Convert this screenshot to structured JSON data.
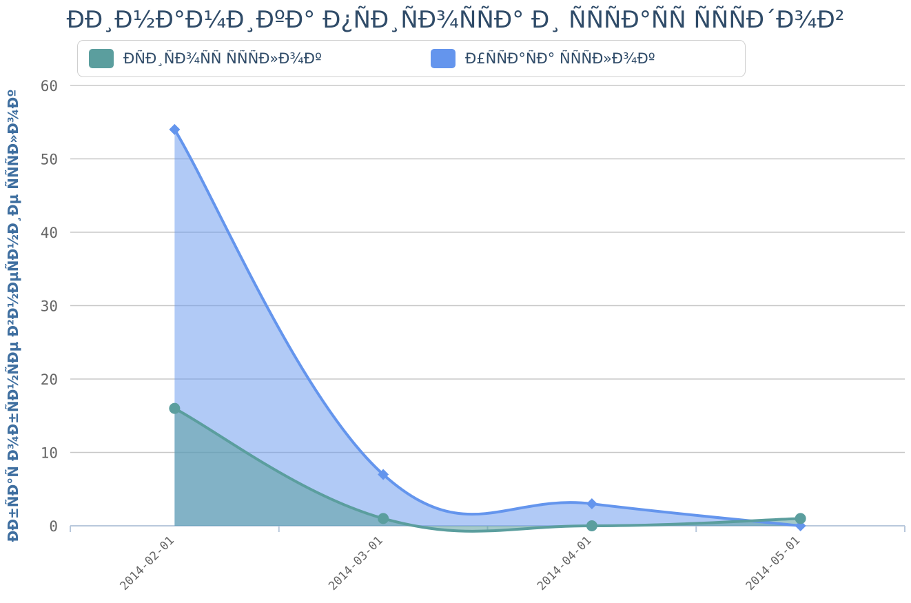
{
  "chart_data": {
    "type": "area",
    "title": "ÐÐ¸Ð½Ð°Ð¼Ð¸ÐºÐ° Ð¿ÑÐ¸ÑÐ¾ÑÑÐ° Ð¸ ÑÑÑÐ°ÑÑ ÑÑÑÐ´Ð¾Ð²",
    "xlabel": "",
    "ylabel": "ÐÐ±ÑÐ°Ñ Ð¾Ð±ÑÐ½ÑÐµ Ð²Ð½ÐµÑÐ½Ð¸Ðµ ÑÑÑÐ»Ð¾Ðº",
    "x": [
      "2014-02-01",
      "2014-03-01",
      "2014-04-01",
      "2014-05-01"
    ],
    "ylim": [
      0,
      60
    ],
    "yticks": [
      "0",
      "10",
      "20",
      "30",
      "40",
      "50",
      "60"
    ],
    "grid": true,
    "legend_position": "top",
    "series": [
      {
        "name": "ÐÑÐ¸ÑÐ¾ÑÑ ÑÑÑÐ»Ð¾Ðº",
        "values": [
          16,
          1,
          0,
          1
        ],
        "color": "#5b9e9e",
        "marker": "circle"
      },
      {
        "name": "Ð£ÑÑÐ°ÑÐ° ÑÑÑÐ»Ð¾Ðº",
        "values": [
          54,
          7,
          3,
          0
        ],
        "color": "#6495ed",
        "marker": "diamond"
      }
    ]
  }
}
